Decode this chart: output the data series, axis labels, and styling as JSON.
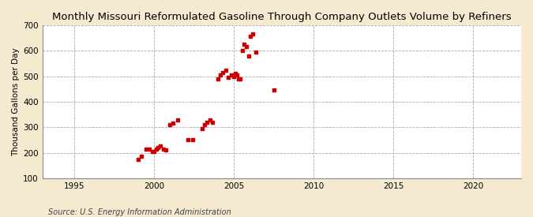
{
  "title": "Monthly Missouri Reformulated Gasoline Through Company Outlets Volume by Refiners",
  "ylabel": "Thousand Gallons per Day",
  "source": "Source: U.S. Energy Information Administration",
  "background_color": "#f5e9d0",
  "plot_background_color": "#ffffff",
  "dot_color": "#cc0000",
  "xlim": [
    1993,
    2023
  ],
  "ylim": [
    100,
    700
  ],
  "xticks": [
    1995,
    2000,
    2005,
    2010,
    2015,
    2020
  ],
  "yticks": [
    100,
    200,
    300,
    400,
    500,
    600,
    700
  ],
  "x": [
    1999.0,
    1999.2,
    1999.5,
    1999.7,
    1999.9,
    2000.0,
    2000.15,
    2000.25,
    2000.4,
    2000.6,
    2000.75,
    2001.0,
    2001.2,
    2001.5,
    2002.1,
    2002.4,
    2003.0,
    2003.15,
    2003.3,
    2003.5,
    2003.65,
    2004.0,
    2004.15,
    2004.3,
    2004.5,
    2004.65,
    2004.85,
    2005.0,
    2005.1,
    2005.2,
    2005.3,
    2005.4,
    2005.55,
    2005.65,
    2005.8,
    2005.95,
    2006.05,
    2006.2,
    2006.4,
    2007.5
  ],
  "y": [
    175,
    185,
    215,
    215,
    205,
    205,
    215,
    220,
    225,
    215,
    210,
    310,
    315,
    330,
    250,
    250,
    295,
    310,
    320,
    330,
    320,
    490,
    505,
    515,
    525,
    495,
    505,
    500,
    510,
    505,
    490,
    490,
    600,
    625,
    615,
    580,
    655,
    665,
    595,
    445
  ]
}
